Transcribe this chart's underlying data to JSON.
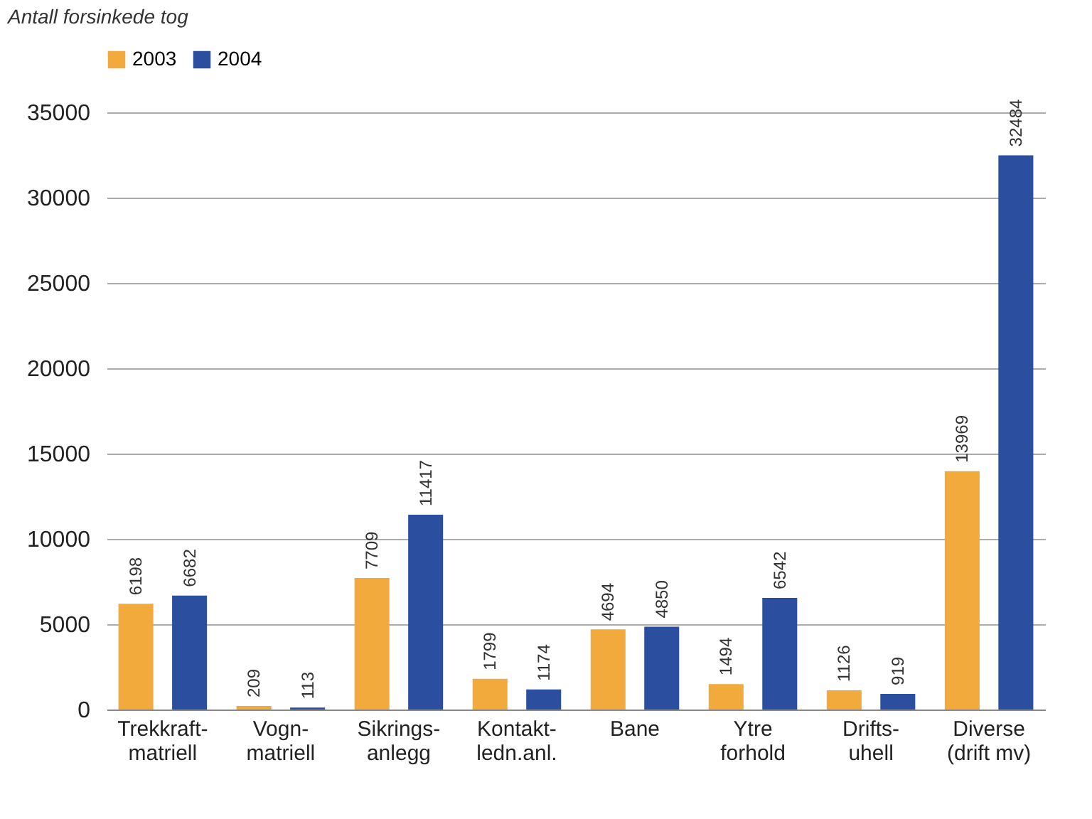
{
  "chart_data": {
    "type": "bar",
    "ylabel": "Antall forsinkede tog",
    "categories": [
      "Trekkraft-\nmatriell",
      "Vogn-\nmatriell",
      "Sikrings-\nanlegg",
      "Kontakt-\nledn.anl.",
      "Bane",
      "Ytre\nforhold",
      "Drifts-\nuhell",
      "Diverse\n(drift mv)"
    ],
    "series": [
      {
        "name": "2003",
        "color": "#f2aa3c",
        "values": [
          6198,
          209,
          7709,
          1799,
          4694,
          1494,
          1126,
          13969
        ]
      },
      {
        "name": "2004",
        "color": "#2b4f9e",
        "values": [
          6682,
          113,
          11417,
          1174,
          4850,
          6542,
          919,
          32484
        ]
      }
    ],
    "ylim": [
      0,
      35000
    ],
    "yticks": [
      0,
      5000,
      10000,
      15000,
      20000,
      25000,
      30000,
      35000
    ],
    "grid": "y",
    "legend": "top",
    "data_labels": true
  }
}
